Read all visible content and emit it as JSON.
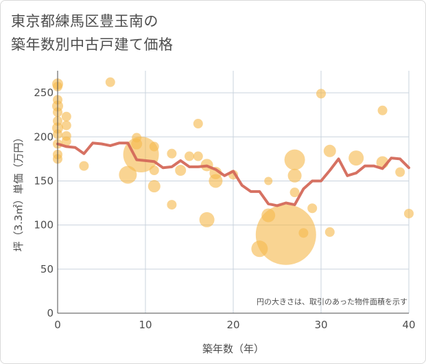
{
  "title_line1": "東京都練馬区豊玉南の",
  "title_line2": "築年数別中古戸建て価格",
  "chart_data": {
    "type": "scatter",
    "title": "東京都練馬区豊玉南の築年数別中古戸建て価格",
    "xlabel": "築年数（年）",
    "ylabel": "坪（3.3㎡）単価（万円）",
    "xlim": [
      0,
      40
    ],
    "ylim": [
      0,
      275
    ],
    "xticks": [
      0,
      10,
      20,
      30,
      40
    ],
    "yticks": [
      0,
      50,
      100,
      150,
      200,
      250
    ],
    "grid": true,
    "annotation": "円の大きさは、取引のあった物件面積を示す",
    "colors": {
      "bubble": "#f5b94f",
      "line": "#d4695a",
      "grid": "#c9d3dd",
      "text": "#4d4d4d"
    },
    "bubbles": [
      {
        "x": 0,
        "y": 260,
        "size": 8
      },
      {
        "x": 0,
        "y": 257,
        "size": 7
      },
      {
        "x": 0,
        "y": 242,
        "size": 7
      },
      {
        "x": 0,
        "y": 235,
        "size": 8
      },
      {
        "x": 0,
        "y": 228,
        "size": 7
      },
      {
        "x": 0,
        "y": 218,
        "size": 7
      },
      {
        "x": 0,
        "y": 210,
        "size": 8
      },
      {
        "x": 0,
        "y": 203,
        "size": 7
      },
      {
        "x": 0,
        "y": 192,
        "size": 7
      },
      {
        "x": 0,
        "y": 180,
        "size": 7
      },
      {
        "x": 0,
        "y": 175,
        "size": 7
      },
      {
        "x": 1,
        "y": 223,
        "size": 7
      },
      {
        "x": 1,
        "y": 213,
        "size": 7
      },
      {
        "x": 1,
        "y": 201,
        "size": 7
      },
      {
        "x": 1,
        "y": 195,
        "size": 7
      },
      {
        "x": 3,
        "y": 167,
        "size": 7
      },
      {
        "x": 6,
        "y": 262,
        "size": 7
      },
      {
        "x": 8,
        "y": 157,
        "size": 13
      },
      {
        "x": 9,
        "y": 199,
        "size": 7
      },
      {
        "x": 9,
        "y": 192,
        "size": 8
      },
      {
        "x": 9.5,
        "y": 180,
        "size": 26
      },
      {
        "x": 11,
        "y": 189,
        "size": 7
      },
      {
        "x": 11,
        "y": 162,
        "size": 7
      },
      {
        "x": 11,
        "y": 144,
        "size": 9
      },
      {
        "x": 13,
        "y": 181,
        "size": 7
      },
      {
        "x": 13,
        "y": 123,
        "size": 7
      },
      {
        "x": 14,
        "y": 162,
        "size": 8
      },
      {
        "x": 15,
        "y": 178,
        "size": 7
      },
      {
        "x": 16,
        "y": 215,
        "size": 7
      },
      {
        "x": 16,
        "y": 178,
        "size": 7
      },
      {
        "x": 17,
        "y": 168,
        "size": 9
      },
      {
        "x": 17,
        "y": 106,
        "size": 11
      },
      {
        "x": 18,
        "y": 150,
        "size": 10
      },
      {
        "x": 18,
        "y": 159,
        "size": 9
      },
      {
        "x": 20,
        "y": 157,
        "size": 7
      },
      {
        "x": 23,
        "y": 73,
        "size": 12
      },
      {
        "x": 24,
        "y": 111,
        "size": 10
      },
      {
        "x": 24,
        "y": 150,
        "size": 6
      },
      {
        "x": 26,
        "y": 89,
        "size": 44
      },
      {
        "x": 27,
        "y": 174,
        "size": 15
      },
      {
        "x": 27,
        "y": 156,
        "size": 10
      },
      {
        "x": 27,
        "y": 137,
        "size": 7
      },
      {
        "x": 28,
        "y": 91,
        "size": 7
      },
      {
        "x": 29,
        "y": 119,
        "size": 7
      },
      {
        "x": 30,
        "y": 249,
        "size": 7
      },
      {
        "x": 31,
        "y": 184,
        "size": 9
      },
      {
        "x": 31,
        "y": 92,
        "size": 7
      },
      {
        "x": 34,
        "y": 176,
        "size": 11
      },
      {
        "x": 37,
        "y": 230,
        "size": 7
      },
      {
        "x": 37,
        "y": 171,
        "size": 9
      },
      {
        "x": 39,
        "y": 160,
        "size": 7
      },
      {
        "x": 40,
        "y": 113,
        "size": 7
      }
    ],
    "trend": {
      "x": [
        0,
        1,
        2,
        3,
        4,
        5,
        6,
        7,
        8,
        9,
        10,
        11,
        12,
        13,
        14,
        15,
        16,
        17,
        18,
        19,
        20,
        21,
        22,
        23,
        24,
        25,
        26,
        27,
        28,
        29,
        30,
        31,
        32,
        33,
        34,
        35,
        36,
        37,
        38,
        39,
        40
      ],
      "y": [
        192,
        189,
        188,
        181,
        193,
        192,
        190,
        193,
        193,
        174,
        173,
        172,
        165,
        166,
        173,
        166,
        166,
        167,
        163,
        156,
        161,
        145,
        138,
        138,
        124,
        122,
        125,
        123,
        141,
        150,
        150,
        162,
        175,
        156,
        159,
        167,
        167,
        164,
        176,
        175,
        165
      ]
    }
  }
}
